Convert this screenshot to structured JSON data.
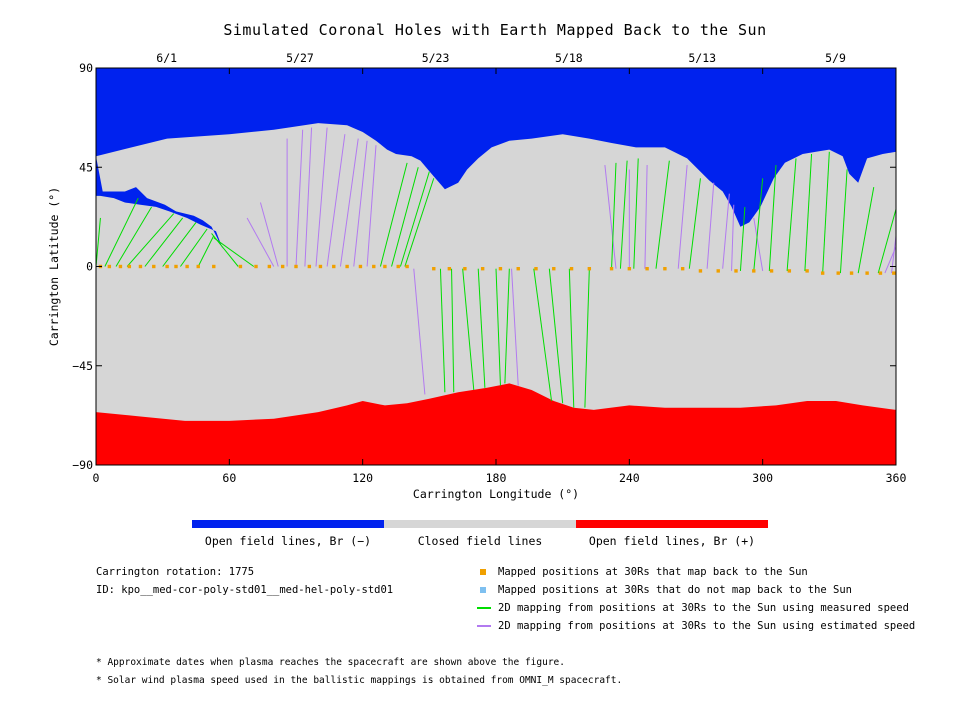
{
  "title": "Simulated Coronal Holes with Earth Mapped Back to the Sun",
  "colors": {
    "open_negative": "#0022ee",
    "closed": "#d6d6d6",
    "open_positive": "#ff0000",
    "mapped_point": "#f0a000",
    "unmapped_point": "#7ec0f0",
    "measured_line": "#00dd00",
    "estimated_line": "#b27af0"
  },
  "colorbar_labels": [
    "Open field lines, Br (−)",
    "Closed field lines",
    "Open field lines, Br (+)"
  ],
  "info": {
    "rotation": "Carrington rotation: 1775",
    "id": "ID: kpo__med-cor-poly-std01__med-hel-poly-std01"
  },
  "legend": [
    {
      "text": "Mapped positions at 30Rs that map back to the Sun",
      "kind": "square",
      "color_key": "mapped_point"
    },
    {
      "text": "Mapped positions at 30Rs that do not map back to the Sun",
      "kind": "square",
      "color_key": "unmapped_point"
    },
    {
      "text": "2D mapping from positions at 30Rs to the Sun using measured speed",
      "kind": "line",
      "color_key": "measured_line"
    },
    {
      "text": "2D mapping from positions at 30Rs to the Sun using estimated speed",
      "kind": "line",
      "color_key": "estimated_line"
    }
  ],
  "footnotes": [
    "* Approximate dates when plasma reaches the spacecraft are shown above the figure.",
    "* Solar wind plasma speed used in the ballistic mappings is obtained from OMNI_M spacecraft."
  ],
  "chart_data": {
    "type": "area",
    "xlabel": "Carrington Longitude (°)",
    "ylabel": "Carrington Latitude (°)",
    "xlim": [
      0,
      360
    ],
    "ylim": [
      -90,
      90
    ],
    "xticks": [
      0,
      60,
      120,
      180,
      240,
      300,
      360
    ],
    "yticks": [
      90,
      45,
      0,
      -45,
      -90
    ],
    "ytick_labels": [
      "90",
      "45",
      "0",
      "−45",
      "−90"
    ],
    "top_axis_dates": [
      {
        "label": "6/1",
        "lon": 30
      },
      {
        "label": "5/27",
        "lon": 90
      },
      {
        "label": "5/23",
        "lon": 151
      },
      {
        "label": "5/18",
        "lon": 211
      },
      {
        "label": "5/13",
        "lon": 271
      },
      {
        "label": "5/9",
        "lon": 331
      }
    ],
    "north_hole_boundary": [
      [
        0,
        50
      ],
      [
        3,
        34
      ],
      [
        13,
        34
      ],
      [
        18,
        36
      ],
      [
        23,
        31
      ],
      [
        31,
        28
      ],
      [
        36,
        25
      ],
      [
        44,
        23
      ],
      [
        48,
        21
      ],
      [
        52,
        18
      ],
      [
        57,
        8
      ],
      [
        54,
        16
      ],
      [
        47,
        19
      ],
      [
        41,
        22
      ],
      [
        33,
        25
      ],
      [
        27,
        27
      ],
      [
        20,
        28
      ],
      [
        13,
        29
      ],
      [
        8,
        31
      ],
      [
        2,
        32
      ],
      [
        0,
        32
      ],
      [
        0,
        50
      ],
      [
        32,
        58
      ],
      [
        60,
        60
      ],
      [
        80,
        62
      ],
      [
        100,
        65
      ],
      [
        113,
        64
      ],
      [
        120,
        61
      ],
      [
        126,
        57
      ],
      [
        131,
        53
      ],
      [
        135,
        51
      ],
      [
        142,
        50
      ],
      [
        146,
        48
      ],
      [
        151,
        42
      ],
      [
        157,
        35
      ],
      [
        163,
        38
      ],
      [
        167,
        44
      ],
      [
        172,
        49
      ],
      [
        178,
        54
      ],
      [
        186,
        57
      ],
      [
        196,
        58
      ],
      [
        210,
        60
      ],
      [
        222,
        58
      ],
      [
        232,
        56
      ],
      [
        243,
        54
      ],
      [
        256,
        54
      ],
      [
        266,
        49
      ],
      [
        276,
        39
      ],
      [
        282,
        34
      ],
      [
        286,
        27
      ],
      [
        290,
        18
      ],
      [
        294,
        20
      ],
      [
        299,
        27
      ],
      [
        305,
        40
      ],
      [
        310,
        47
      ],
      [
        318,
        51
      ],
      [
        324,
        52
      ],
      [
        330,
        53
      ],
      [
        336,
        50
      ],
      [
        339,
        42
      ],
      [
        343,
        38
      ],
      [
        347,
        49
      ],
      [
        354,
        51
      ],
      [
        360,
        52
      ]
    ],
    "south_hole_boundary": [
      [
        0,
        -66
      ],
      [
        20,
        -68
      ],
      [
        40,
        -70
      ],
      [
        60,
        -70
      ],
      [
        80,
        -69
      ],
      [
        100,
        -66
      ],
      [
        113,
        -63
      ],
      [
        120,
        -61
      ],
      [
        130,
        -63
      ],
      [
        140,
        -62
      ],
      [
        150,
        -60
      ],
      [
        163,
        -57
      ],
      [
        176,
        -55
      ],
      [
        186,
        -53
      ],
      [
        196,
        -56
      ],
      [
        206,
        -61
      ],
      [
        215,
        -64
      ],
      [
        224,
        -65
      ],
      [
        240,
        -63
      ],
      [
        256,
        -64
      ],
      [
        270,
        -64
      ],
      [
        290,
        -64
      ],
      [
        306,
        -63
      ],
      [
        320,
        -61
      ],
      [
        333,
        -61
      ],
      [
        345,
        -63
      ],
      [
        360,
        -65
      ]
    ],
    "mapped_points_lon": [
      2,
      6,
      11,
      15,
      20,
      26,
      32,
      36,
      41,
      46,
      53,
      65,
      72,
      78,
      84,
      90,
      96,
      101,
      107,
      113,
      119,
      125,
      130,
      136,
      140,
      152,
      159,
      166,
      174,
      182,
      190,
      198,
      206,
      214,
      222,
      232,
      240,
      248,
      256,
      264,
      272,
      280,
      288,
      296,
      304,
      312,
      320,
      327,
      334,
      340,
      347,
      353,
      359
    ],
    "mapped_points_lat": [
      0,
      0,
      0,
      0,
      0,
      0,
      0,
      0,
      0,
      0,
      0,
      0,
      0,
      0,
      0,
      0,
      0,
      0,
      0,
      0,
      0,
      0,
      0,
      0,
      0,
      -1,
      -1,
      -1,
      -1,
      -1,
      -1,
      -1,
      -1,
      -1,
      -1,
      -1,
      -1,
      -1,
      -1,
      -1,
      -2,
      -2,
      -2,
      -2,
      -2,
      -2,
      -2,
      -3,
      -3,
      -3,
      -3,
      -3,
      -3
    ],
    "measured_mappings": [
      [
        0,
        0,
        2,
        22
      ],
      [
        4,
        0,
        19,
        31
      ],
      [
        9,
        0,
        25,
        27
      ],
      [
        14,
        0,
        35,
        24
      ],
      [
        22,
        0,
        39,
        22
      ],
      [
        30,
        0,
        45,
        20
      ],
      [
        38,
        0,
        50,
        17
      ],
      [
        46,
        0,
        53,
        14
      ],
      [
        64,
        0,
        52,
        15
      ],
      [
        71,
        0,
        53,
        13
      ],
      [
        128,
        0,
        140,
        47
      ],
      [
        133,
        0,
        145,
        45
      ],
      [
        137,
        0,
        150,
        43
      ],
      [
        139,
        0,
        152,
        40
      ],
      [
        155,
        -1,
        157,
        -57
      ],
      [
        160,
        -1,
        161,
        -57
      ],
      [
        165,
        -1,
        170,
        -56
      ],
      [
        172,
        -1,
        175,
        -55
      ],
      [
        180,
        -1,
        182,
        -54
      ],
      [
        186,
        -1,
        184,
        -53
      ],
      [
        197,
        -1,
        205,
        -61
      ],
      [
        204,
        -1,
        210,
        -62
      ],
      [
        213,
        -1,
        215,
        -64
      ],
      [
        222,
        -1,
        220,
        -64
      ],
      [
        232,
        -1,
        234,
        47
      ],
      [
        236,
        -1,
        239,
        48
      ],
      [
        242,
        -1,
        244,
        49
      ],
      [
        252,
        -1,
        258,
        48
      ],
      [
        267,
        -1,
        272,
        40
      ],
      [
        290,
        -2,
        292,
        27
      ],
      [
        296,
        -2,
        300,
        40
      ],
      [
        303,
        -2,
        306,
        46
      ],
      [
        311,
        -2,
        315,
        49
      ],
      [
        319,
        -2,
        322,
        51
      ],
      [
        327,
        -3,
        330,
        52
      ],
      [
        335,
        -3,
        338,
        44
      ],
      [
        343,
        -3,
        350,
        36
      ],
      [
        352,
        -3,
        360,
        26
      ]
    ],
    "estimated_mappings": [
      [
        80,
        0,
        68,
        22
      ],
      [
        82,
        0,
        74,
        29
      ],
      [
        86,
        0,
        86,
        58
      ],
      [
        90,
        0,
        93,
        62
      ],
      [
        94,
        0,
        97,
        63
      ],
      [
        99,
        0,
        104,
        63
      ],
      [
        104,
        0,
        112,
        60
      ],
      [
        110,
        0,
        118,
        58
      ],
      [
        116,
        0,
        122,
        57
      ],
      [
        122,
        0,
        126,
        55
      ],
      [
        143,
        -1,
        148,
        -58
      ],
      [
        187,
        -1,
        190,
        -54
      ],
      [
        234,
        -1,
        229,
        46
      ],
      [
        240,
        -1,
        240,
        44
      ],
      [
        247,
        -1,
        248,
        46
      ],
      [
        262,
        -1,
        266,
        46
      ],
      [
        275,
        -1,
        278,
        38
      ],
      [
        282,
        -1,
        285,
        33
      ],
      [
        286,
        -2,
        287,
        28
      ],
      [
        300,
        -2,
        296,
        22
      ],
      [
        355,
        -3,
        360,
        9
      ],
      [
        358,
        -3,
        360,
        14
      ]
    ]
  }
}
